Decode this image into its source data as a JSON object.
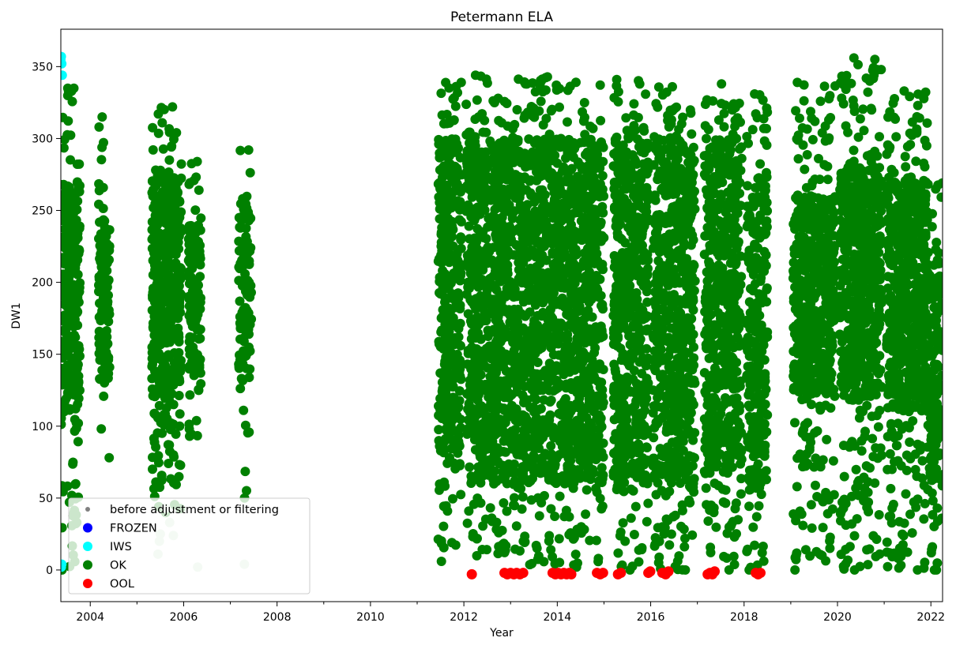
{
  "chart_data": {
    "type": "scatter",
    "title": "Petermann ELA",
    "xlabel": "Year",
    "ylabel": "DW1",
    "xlim": [
      2003.37,
      2022.25
    ],
    "ylim": [
      -22,
      376
    ],
    "x_ticks": [
      2004,
      2006,
      2008,
      2010,
      2012,
      2014,
      2016,
      2018,
      2020,
      2022
    ],
    "x_tick_labels": [
      "2004",
      "2006",
      "2008",
      "2010",
      "2012",
      "2014",
      "2016",
      "2018",
      "2020",
      "2022"
    ],
    "y_ticks": [
      0,
      50,
      100,
      150,
      200,
      250,
      300,
      350
    ],
    "y_tick_labels": [
      "0",
      "50",
      "100",
      "150",
      "200",
      "250",
      "300",
      "350"
    ],
    "legend_position": "lower-left",
    "series": [
      {
        "name": "before adjustment or filtering",
        "color": "#808080",
        "marker": "small-dot"
      },
      {
        "name": "FROZEN",
        "color": "#0000ff",
        "marker": "dot"
      },
      {
        "name": "IWS",
        "color": "#00ffff",
        "marker": "dot"
      },
      {
        "name": "OK",
        "color": "#008000",
        "marker": "dot"
      },
      {
        "name": "OOL",
        "color": "#ff0000",
        "marker": "dot"
      }
    ],
    "ok_clusters": [
      {
        "x": [
          2003.37,
          2003.78
        ],
        "y": [
          0,
          335
        ],
        "core": [
          110,
          270
        ],
        "density": 1.0
      },
      {
        "x": [
          2004.18,
          2004.42
        ],
        "y": [
          78,
          315
        ],
        "core": [
          130,
          245
        ],
        "density": 0.5
      },
      {
        "x": [
          2005.32,
          2005.95
        ],
        "y": [
          40,
          322
        ],
        "core": [
          120,
          275
        ],
        "density": 1.0
      },
      {
        "x": [
          2006.1,
          2006.38
        ],
        "y": [
          93,
          284
        ],
        "core": [
          140,
          240
        ],
        "density": 0.5
      },
      {
        "x": [
          2007.18,
          2007.45
        ],
        "y": [
          50,
          292
        ],
        "core": [
          120,
          260
        ],
        "density": 0.4
      },
      {
        "x": [
          2011.45,
          2011.95
        ],
        "y": [
          6,
          339
        ],
        "core": [
          80,
          300
        ],
        "density": 1.0
      },
      {
        "x": [
          2012.05,
          2015.0
        ],
        "y": [
          2,
          344
        ],
        "core": [
          60,
          300
        ],
        "density": 1.0
      },
      {
        "x": [
          2015.2,
          2015.95
        ],
        "y": [
          0,
          341
        ],
        "core": [
          60,
          300
        ],
        "density": 1.0
      },
      {
        "x": [
          2016.05,
          2016.95
        ],
        "y": [
          0,
          336
        ],
        "core": [
          60,
          300
        ],
        "density": 1.0
      },
      {
        "x": [
          2017.15,
          2017.95
        ],
        "y": [
          0,
          338
        ],
        "core": [
          70,
          300
        ],
        "density": 1.0
      },
      {
        "x": [
          2018.05,
          2018.5
        ],
        "y": [
          0,
          331
        ],
        "core": [
          60,
          270
        ],
        "density": 0.8
      },
      {
        "x": [
          2019.05,
          2019.95
        ],
        "y": [
          0,
          339
        ],
        "core": [
          120,
          260
        ],
        "density": 1.0
      },
      {
        "x": [
          2020.05,
          2020.95
        ],
        "y": [
          0,
          356
        ],
        "core": [
          120,
          280
        ],
        "density": 1.0
      },
      {
        "x": [
          2021.05,
          2021.95
        ],
        "y": [
          0,
          333
        ],
        "core": [
          110,
          270
        ],
        "density": 1.0
      },
      {
        "x": [
          2021.95,
          2022.25
        ],
        "y": [
          0,
          269
        ],
        "core": [
          60,
          230
        ],
        "density": 0.6
      }
    ],
    "iws_points": [
      {
        "x": 2003.38,
        "y": 357
      },
      {
        "x": 2003.39,
        "y": 352
      },
      {
        "x": 2003.4,
        "y": 344
      },
      {
        "x": 2003.37,
        "y": 355
      },
      {
        "x": 2003.38,
        "y": 2
      },
      {
        "x": 2003.39,
        "y": 4
      }
    ],
    "before_points": [
      {
        "x": 2005.45,
        "y": 11
      },
      {
        "x": 2005.48,
        "y": 20
      },
      {
        "x": 2005.5,
        "y": 25
      },
      {
        "x": 2005.7,
        "y": 33
      },
      {
        "x": 2005.78,
        "y": 24
      },
      {
        "x": 2005.62,
        "y": 43
      },
      {
        "x": 2006.3,
        "y": 2
      },
      {
        "x": 2007.3,
        "y": 4
      }
    ],
    "ool_points": [
      {
        "x": 2012.17,
        "y": -3
      },
      {
        "x": 2012.87,
        "y": -2
      },
      {
        "x": 2012.93,
        "y": -3
      },
      {
        "x": 2013.0,
        "y": -2
      },
      {
        "x": 2013.07,
        "y": -3
      },
      {
        "x": 2013.13,
        "y": -2
      },
      {
        "x": 2013.2,
        "y": -3
      },
      {
        "x": 2013.27,
        "y": -2
      },
      {
        "x": 2013.9,
        "y": -2
      },
      {
        "x": 2013.96,
        "y": -3
      },
      {
        "x": 2014.02,
        "y": -2
      },
      {
        "x": 2014.08,
        "y": -3
      },
      {
        "x": 2014.14,
        "y": -2
      },
      {
        "x": 2014.2,
        "y": -3
      },
      {
        "x": 2014.26,
        "y": -2
      },
      {
        "x": 2014.3,
        "y": -3
      },
      {
        "x": 2014.85,
        "y": -2
      },
      {
        "x": 2014.92,
        "y": -3
      },
      {
        "x": 2014.98,
        "y": -2
      },
      {
        "x": 2015.3,
        "y": -3
      },
      {
        "x": 2015.36,
        "y": -2
      },
      {
        "x": 2015.95,
        "y": -2
      },
      {
        "x": 2015.99,
        "y": -1
      },
      {
        "x": 2016.25,
        "y": -2
      },
      {
        "x": 2016.32,
        "y": -3
      },
      {
        "x": 2016.38,
        "y": -1
      },
      {
        "x": 2017.22,
        "y": -3
      },
      {
        "x": 2017.27,
        "y": -2
      },
      {
        "x": 2017.32,
        "y": -3
      },
      {
        "x": 2017.37,
        "y": -1
      },
      {
        "x": 2018.25,
        "y": -2
      },
      {
        "x": 2018.3,
        "y": -3
      },
      {
        "x": 2018.35,
        "y": -2
      }
    ]
  }
}
